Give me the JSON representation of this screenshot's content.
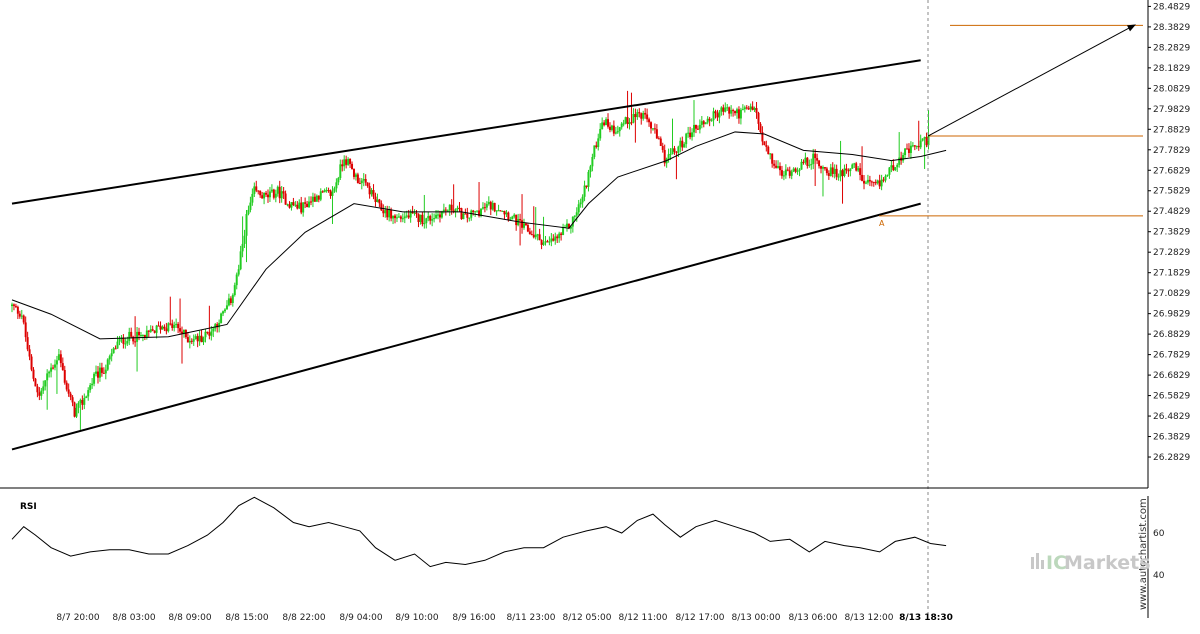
{
  "chart_data": {
    "type": "candlestick",
    "title": "",
    "xlabel": "",
    "ylabel": "",
    "timeframe": "15m",
    "ylim": [
      26.2,
      28.48
    ],
    "y_ticks": [
      "28.4829",
      "28.3829",
      "28.2829",
      "28.1829",
      "28.0829",
      "27.9829",
      "27.8829",
      "27.7829",
      "27.6829",
      "27.5829",
      "27.4829",
      "27.3829",
      "27.2829",
      "27.1829",
      "27.0829",
      "26.9829",
      "26.8829",
      "26.7829",
      "26.6829",
      "26.5829",
      "26.4829",
      "26.3829",
      "26.2829"
    ],
    "x_ticks": [
      "8/7 20:00",
      "8/8 03:00",
      "8/8 09:00",
      "8/8 15:00",
      "8/8 22:00",
      "8/9 04:00",
      "8/9 10:00",
      "8/9 16:00",
      "8/11 23:00",
      "8/12 05:00",
      "8/12 11:00",
      "8/12 17:00",
      "8/13 00:00",
      "8/13 06:00",
      "8/13 12:00",
      "8/13 18:30"
    ],
    "current_time_label": "8/13 18:30",
    "price_path": [
      [
        0,
        27.02
      ],
      [
        5,
        26.98
      ],
      [
        10,
        26.7
      ],
      [
        14,
        26.58
      ],
      [
        19,
        26.7
      ],
      [
        24,
        26.78
      ],
      [
        28,
        26.62
      ],
      [
        32,
        26.5
      ],
      [
        36,
        26.55
      ],
      [
        42,
        26.67
      ],
      [
        48,
        26.72
      ],
      [
        54,
        26.84
      ],
      [
        60,
        26.87
      ],
      [
        68,
        26.87
      ],
      [
        76,
        26.92
      ],
      [
        84,
        26.92
      ],
      [
        90,
        26.86
      ],
      [
        96,
        26.86
      ],
      [
        102,
        26.9
      ],
      [
        108,
        26.98
      ],
      [
        112,
        27.05
      ],
      [
        116,
        27.2
      ],
      [
        120,
        27.45
      ],
      [
        124,
        27.58
      ],
      [
        130,
        27.55
      ],
      [
        136,
        27.58
      ],
      [
        142,
        27.52
      ],
      [
        148,
        27.5
      ],
      [
        156,
        27.56
      ],
      [
        164,
        27.57
      ],
      [
        170,
        27.75
      ],
      [
        176,
        27.65
      ],
      [
        182,
        27.6
      ],
      [
        188,
        27.5
      ],
      [
        196,
        27.45
      ],
      [
        204,
        27.46
      ],
      [
        212,
        27.44
      ],
      [
        220,
        27.48
      ],
      [
        226,
        27.5
      ],
      [
        232,
        27.45
      ],
      [
        238,
        27.48
      ],
      [
        244,
        27.51
      ],
      [
        250,
        27.5
      ],
      [
        256,
        27.45
      ],
      [
        262,
        27.4
      ],
      [
        268,
        27.36
      ],
      [
        274,
        27.32
      ],
      [
        280,
        27.36
      ],
      [
        286,
        27.42
      ],
      [
        292,
        27.55
      ],
      [
        298,
        27.78
      ],
      [
        302,
        27.93
      ],
      [
        308,
        27.88
      ],
      [
        314,
        27.92
      ],
      [
        320,
        27.96
      ],
      [
        326,
        27.92
      ],
      [
        330,
        27.84
      ],
      [
        334,
        27.74
      ],
      [
        340,
        27.78
      ],
      [
        348,
        27.88
      ],
      [
        356,
        27.93
      ],
      [
        364,
        27.98
      ],
      [
        372,
        27.96
      ],
      [
        380,
        27.99
      ],
      [
        384,
        27.82
      ],
      [
        388,
        27.74
      ],
      [
        394,
        27.66
      ],
      [
        402,
        27.7
      ],
      [
        410,
        27.74
      ],
      [
        416,
        27.69
      ],
      [
        422,
        27.66
      ],
      [
        428,
        27.7
      ],
      [
        432,
        27.69
      ],
      [
        436,
        27.62
      ],
      [
        442,
        27.6
      ],
      [
        446,
        27.64
      ],
      [
        452,
        27.72
      ],
      [
        456,
        27.76
      ],
      [
        460,
        27.78
      ],
      [
        466,
        27.82
      ],
      [
        470,
        27.84
      ],
      [
        474,
        27.83
      ]
    ],
    "indicators": [
      {
        "name": "Moving Average",
        "color": "#000000",
        "values": [
          [
            0,
            27.05
          ],
          [
            20,
            26.98
          ],
          [
            45,
            26.86
          ],
          [
            80,
            26.87
          ],
          [
            110,
            26.93
          ],
          [
            130,
            27.2
          ],
          [
            150,
            27.38
          ],
          [
            175,
            27.52
          ],
          [
            200,
            27.48
          ],
          [
            230,
            27.48
          ],
          [
            260,
            27.43
          ],
          [
            285,
            27.4
          ],
          [
            295,
            27.52
          ],
          [
            310,
            27.65
          ],
          [
            335,
            27.73
          ],
          [
            350,
            27.8
          ],
          [
            370,
            27.87
          ],
          [
            385,
            27.86
          ],
          [
            405,
            27.78
          ],
          [
            430,
            27.76
          ],
          [
            450,
            27.73
          ],
          [
            465,
            27.75
          ],
          [
            478,
            27.78
          ]
        ]
      },
      {
        "name": "RSI",
        "color": "#000000",
        "ylim": [
          30,
          80
        ],
        "ticks": [
          "60",
          "40"
        ],
        "values": [
          [
            0,
            57
          ],
          [
            6,
            63
          ],
          [
            12,
            59
          ],
          [
            20,
            53
          ],
          [
            30,
            49
          ],
          [
            40,
            51
          ],
          [
            50,
            52
          ],
          [
            60,
            52
          ],
          [
            70,
            50
          ],
          [
            80,
            50
          ],
          [
            90,
            54
          ],
          [
            100,
            59
          ],
          [
            108,
            65
          ],
          [
            116,
            73
          ],
          [
            124,
            77
          ],
          [
            134,
            72
          ],
          [
            144,
            65
          ],
          [
            152,
            63
          ],
          [
            162,
            65
          ],
          [
            170,
            63
          ],
          [
            178,
            61
          ],
          [
            186,
            53
          ],
          [
            196,
            47
          ],
          [
            206,
            50
          ],
          [
            214,
            44
          ],
          [
            222,
            46
          ],
          [
            232,
            45
          ],
          [
            242,
            47
          ],
          [
            252,
            51
          ],
          [
            262,
            53
          ],
          [
            272,
            53
          ],
          [
            282,
            58
          ],
          [
            294,
            61
          ],
          [
            304,
            63
          ],
          [
            312,
            60
          ],
          [
            320,
            66
          ],
          [
            328,
            69
          ],
          [
            334,
            64
          ],
          [
            342,
            58
          ],
          [
            350,
            63
          ],
          [
            360,
            66
          ],
          [
            370,
            63
          ],
          [
            380,
            60
          ],
          [
            388,
            56
          ],
          [
            398,
            57
          ],
          [
            408,
            51
          ],
          [
            416,
            56
          ],
          [
            426,
            54
          ],
          [
            434,
            53
          ],
          [
            444,
            51
          ],
          [
            452,
            56
          ],
          [
            462,
            58
          ],
          [
            470,
            55
          ],
          [
            478,
            54
          ]
        ]
      }
    ],
    "pattern": {
      "name": "Ascending Channel",
      "upper_line": [
        [
          0,
          27.52
        ],
        [
          465,
          28.22
        ]
      ],
      "lower_line": [
        [
          0,
          26.32
        ],
        [
          465,
          27.52
        ]
      ],
      "start_point_label": "A",
      "support_level": 27.46,
      "current_level": 27.85,
      "target_level": 28.39
    },
    "grid": false,
    "legend": "none"
  },
  "labels": {
    "rsi_title": "RSI",
    "watermark": "www.autochartist.com",
    "brand_ic": "IC",
    "brand_markets": "Markets"
  },
  "colors": {
    "bullish": "#22cc22",
    "bearish": "#dd0000",
    "channel": "#000000",
    "level_lines": "#cc6600",
    "forecast_arrow": "#000000",
    "time_marker": "#888888"
  }
}
